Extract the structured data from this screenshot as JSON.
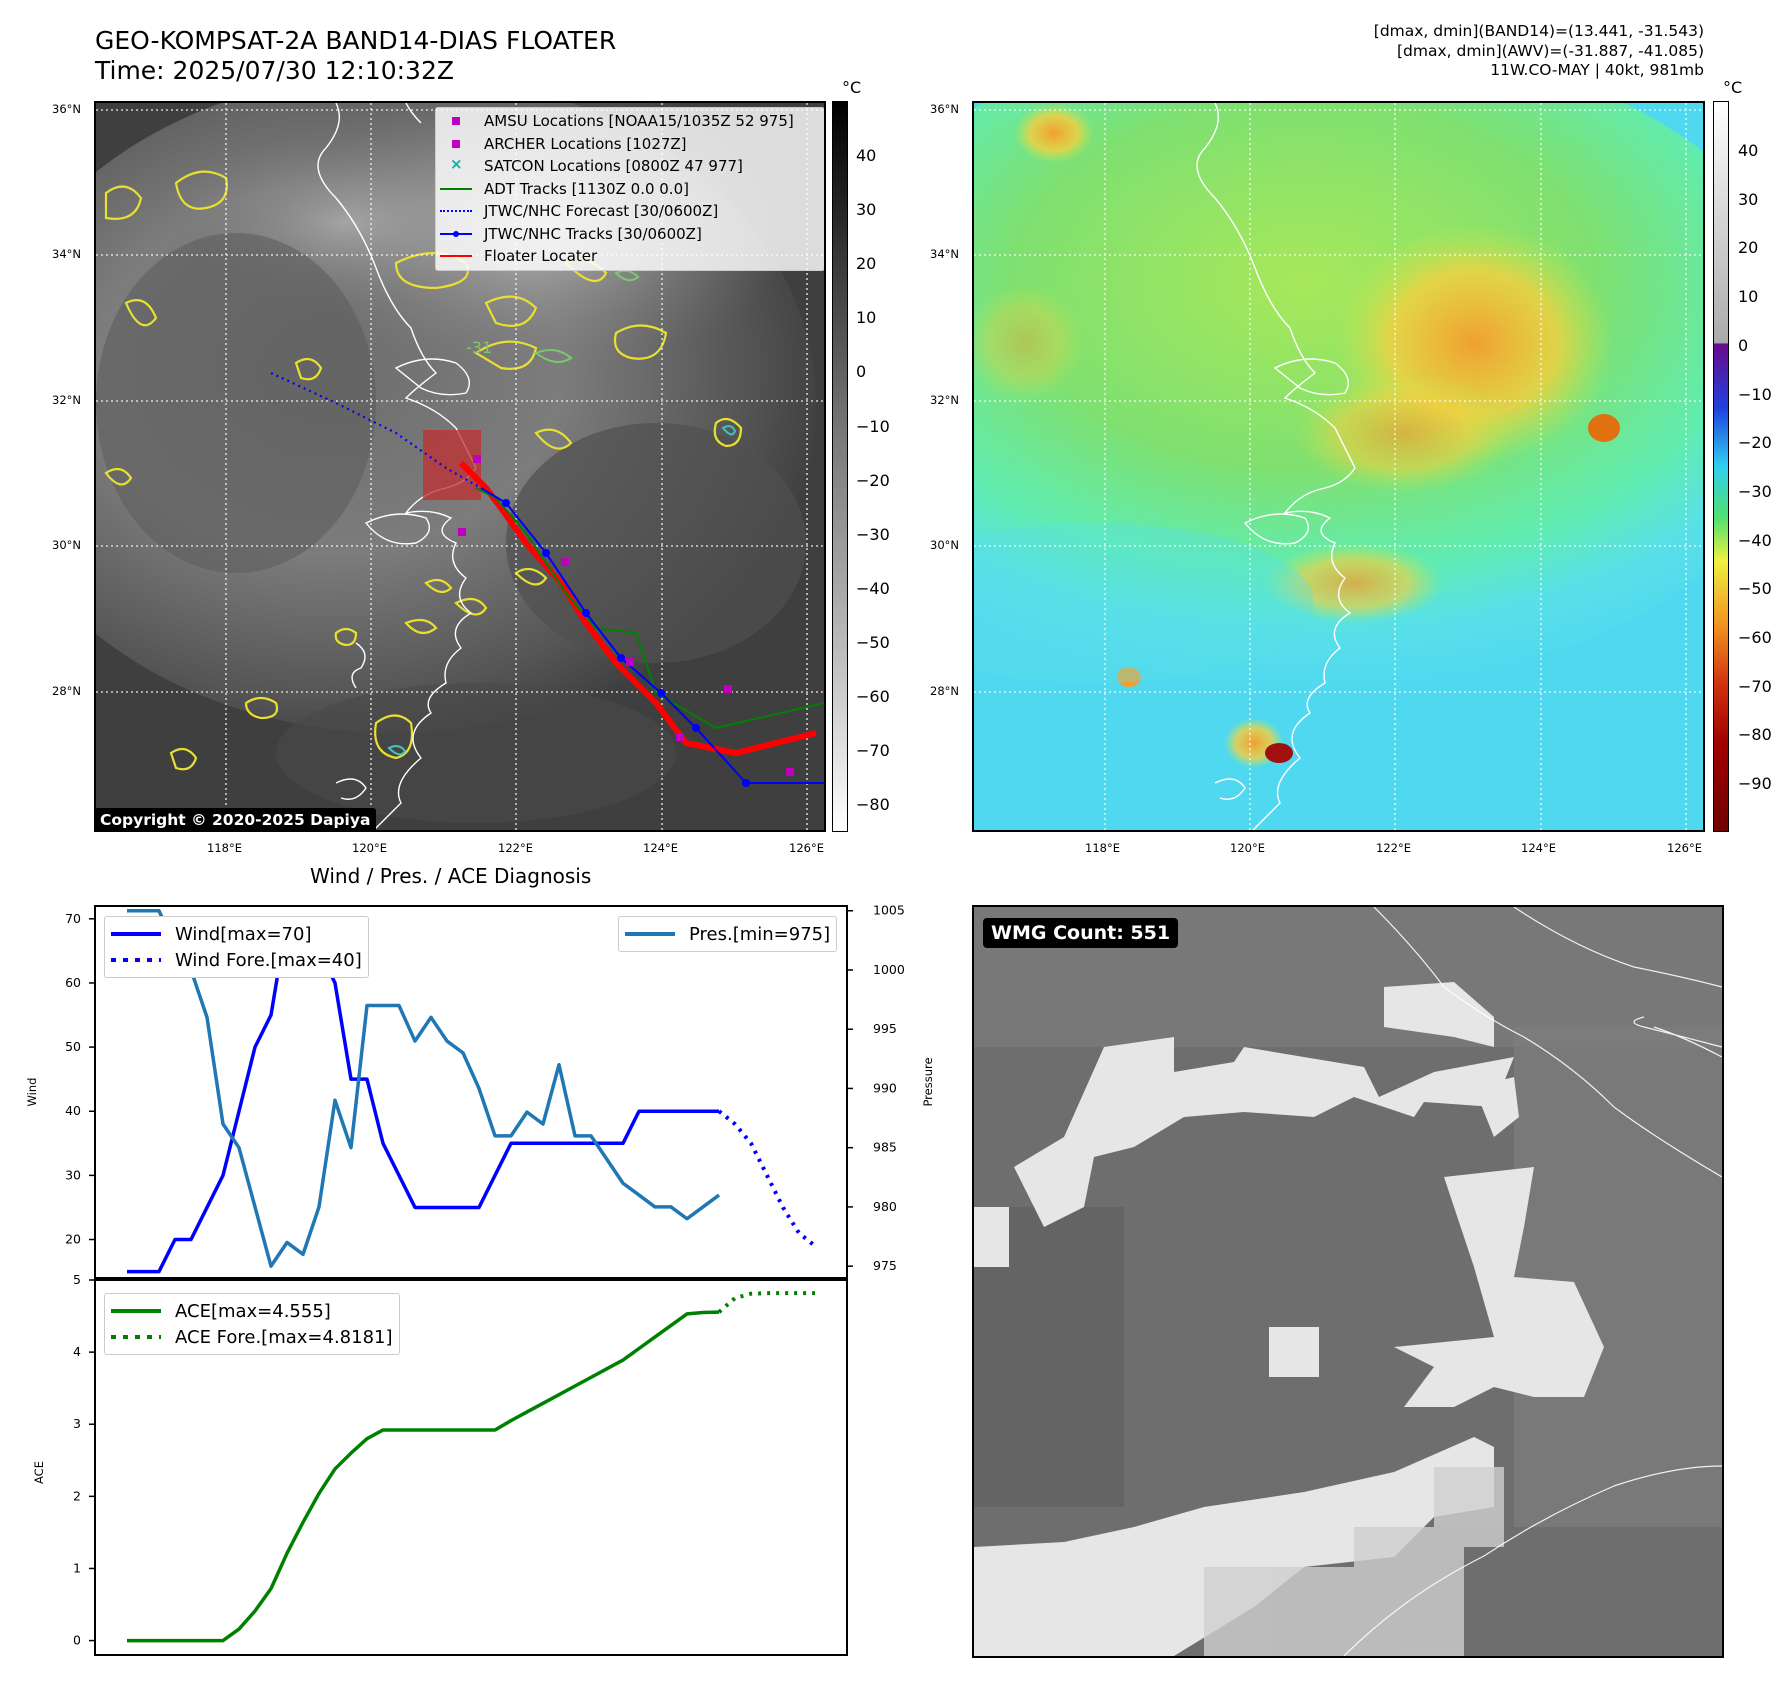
{
  "header": {
    "title_line1": "GEO-KOMPSAT-2A BAND14-DIAS FLOATER",
    "title_line2": "Time: 2025/07/30 12:10:32Z",
    "info_line1": "[dmax, dmin](BAND14)=(13.441, -31.543)",
    "info_line2": "[dmax, dmin](AWV)=(-31.887, -41.085)",
    "info_line3": "11W.CO-MAY | 40kt, 981mb"
  },
  "map_axes": {
    "lat_labels": [
      "36°N",
      "34°N",
      "32°N",
      "30°N",
      "28°N"
    ],
    "lon_labels": [
      "118°E",
      "120°E",
      "122°E",
      "124°E",
      "126°E"
    ]
  },
  "ir_panel": {
    "colorbar_unit": "°C",
    "colorbar_ticks": [
      "40",
      "30",
      "20",
      "10",
      "0",
      "−10",
      "−20",
      "−30",
      "−40",
      "−50",
      "−60",
      "−70",
      "−80"
    ],
    "copyright": "Copyright © 2020-2025 Dapiya",
    "contour_label": "-31",
    "legend": [
      {
        "label": "AMSU Locations [NOAA15/1035Z 52 975]",
        "symbol": "square",
        "color": "#c000c0"
      },
      {
        "label": "ARCHER Locations [1027Z]",
        "symbol": "square",
        "color": "#c000c0"
      },
      {
        "label": "SATCON Locations [0800Z 47 977]",
        "symbol": "x",
        "color": "#00b3b3"
      },
      {
        "label": "ADT Tracks [1130Z 0.0 0.0]",
        "symbol": "line",
        "color": "#008000"
      },
      {
        "label": "JTWC/NHC Forecast [30/0600Z]",
        "symbol": "dotted",
        "color": "#0000ff"
      },
      {
        "label": "JTWC/NHC Tracks [30/0600Z]",
        "symbol": "line-dot",
        "color": "#0000ff"
      },
      {
        "label": "Floater Locater",
        "symbol": "line",
        "color": "#ff0000"
      }
    ]
  },
  "wv_panel": {
    "colorbar_unit": "°C",
    "colorbar_ticks": [
      "40",
      "30",
      "20",
      "10",
      "0",
      "−10",
      "−20",
      "−30",
      "−40",
      "−50",
      "−60",
      "−70",
      "−80",
      "−90"
    ]
  },
  "wmg_panel": {
    "label": "WMG Count: 551"
  },
  "chart_data": [
    {
      "type": "line",
      "title": "Wind / Pres. / ACE Diagnosis",
      "ylabel": "Wind",
      "y2label": "Pressure",
      "ylim": [
        14,
        72
      ],
      "y2lim": [
        974,
        1005.4
      ],
      "yticks": [
        20,
        30,
        40,
        50,
        60,
        70
      ],
      "y2ticks": [
        975,
        980,
        985,
        990,
        995,
        1000,
        1005
      ],
      "xlim": [
        -2,
        45
      ],
      "series": [
        {
          "name": "Wind[max=70]",
          "axis": "left",
          "color": "#0000ff",
          "style": "solid",
          "x": [
            0,
            1,
            2,
            3,
            4,
            5,
            6,
            7,
            8,
            9,
            10,
            11,
            12,
            13,
            14,
            15,
            16,
            17,
            18,
            19,
            20,
            21,
            22,
            23,
            24,
            25,
            26,
            27,
            28,
            29,
            30,
            31,
            32,
            33,
            34,
            35,
            36,
            37
          ],
          "values": [
            15,
            15,
            15,
            20,
            20,
            25,
            30,
            40,
            50,
            55,
            70,
            65,
            65,
            60,
            45,
            45,
            35,
            30,
            25,
            25,
            25,
            25,
            25,
            30,
            35,
            35,
            35,
            35,
            35,
            35,
            35,
            35,
            40,
            40,
            40,
            40,
            40,
            40
          ]
        },
        {
          "name": "Wind Fore.[max=40]",
          "axis": "left",
          "color": "#0000ff",
          "style": "dotted",
          "x": [
            37,
            38,
            39,
            40,
            41,
            42,
            43
          ],
          "values": [
            40,
            38,
            35,
            30,
            25,
            21,
            19
          ]
        },
        {
          "name": "Pres.[min=975]",
          "axis": "right",
          "color": "#1f77b4",
          "style": "solid",
          "x": [
            0,
            1,
            2,
            3,
            4,
            5,
            6,
            7,
            8,
            9,
            10,
            11,
            12,
            13,
            14,
            15,
            16,
            17,
            18,
            19,
            20,
            21,
            22,
            23,
            24,
            25,
            26,
            27,
            28,
            29,
            30,
            31,
            32,
            33,
            34,
            35,
            36,
            37
          ],
          "values": [
            1005,
            1005,
            1005,
            1002,
            1000,
            996,
            987,
            985,
            980,
            975,
            977,
            976,
            980,
            989,
            985,
            997,
            997,
            997,
            994,
            996,
            994,
            993,
            990,
            986,
            986,
            988,
            987,
            992,
            986,
            986,
            984,
            982,
            981,
            980,
            980,
            979,
            980,
            981
          ]
        }
      ]
    },
    {
      "type": "line",
      "ylabel": "ACE",
      "ylim": [
        -0.2,
        5
      ],
      "yticks": [
        0,
        1,
        2,
        3,
        4,
        5
      ],
      "xlim": [
        -2,
        45
      ],
      "series": [
        {
          "name": "ACE[max=4.555]",
          "color": "#008000",
          "style": "solid",
          "x": [
            0,
            1,
            2,
            3,
            4,
            5,
            6,
            7,
            8,
            9,
            10,
            11,
            12,
            13,
            14,
            15,
            16,
            17,
            18,
            19,
            20,
            21,
            22,
            23,
            24,
            25,
            26,
            27,
            28,
            29,
            30,
            31,
            32,
            33,
            34,
            35,
            36,
            37
          ],
          "values": [
            0,
            0,
            0,
            0,
            0,
            0,
            0,
            0.16,
            0.41,
            0.72,
            1.21,
            1.64,
            2.04,
            2.38,
            2.6,
            2.8,
            2.92,
            2.92,
            2.92,
            2.92,
            2.92,
            2.92,
            2.92,
            2.92,
            3.05,
            3.17,
            3.29,
            3.41,
            3.53,
            3.65,
            3.77,
            3.89,
            4.05,
            4.21,
            4.37,
            4.53,
            4.55,
            4.555
          ]
        },
        {
          "name": "ACE Fore.[max=4.8181]",
          "color": "#008000",
          "style": "dotted",
          "x": [
            37,
            38,
            39,
            40,
            41,
            42,
            43
          ],
          "values": [
            4.555,
            4.75,
            4.81,
            4.818,
            4.818,
            4.818,
            4.8181
          ]
        }
      ]
    }
  ]
}
